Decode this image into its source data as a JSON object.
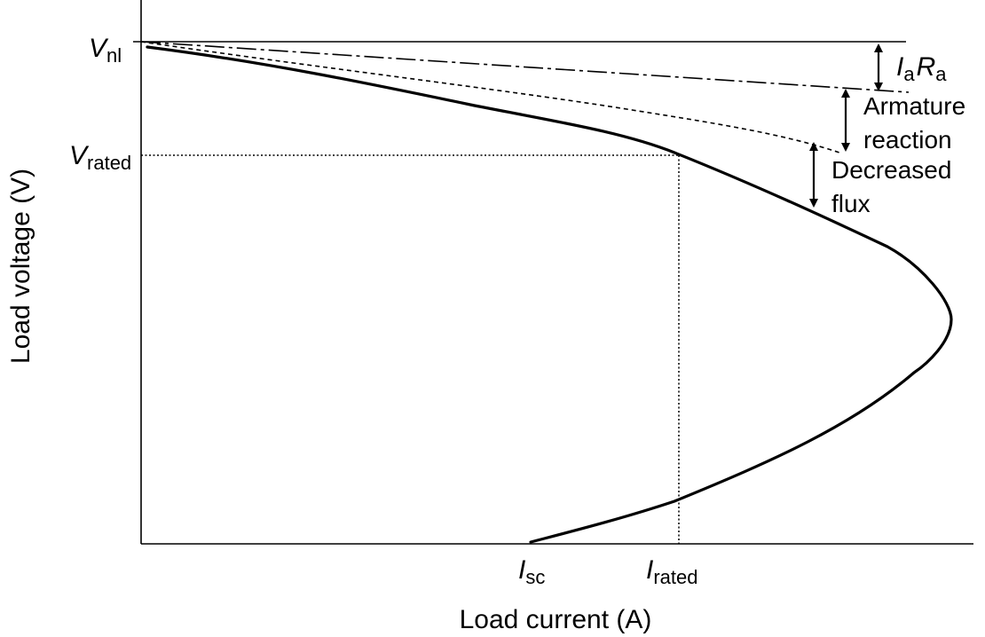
{
  "figure": {
    "axes": {
      "x_label": "Load current (A)",
      "y_label": "Load voltage (V)"
    },
    "y_ticks": [
      {
        "main": "V",
        "sub": "nl"
      },
      {
        "main": "V",
        "sub": "rated"
      }
    ],
    "x_ticks": [
      {
        "main": "I",
        "sub": "sc"
      },
      {
        "main": "I",
        "sub": "rated"
      }
    ],
    "annotations": {
      "iara": {
        "i": "I",
        "i_sub": "a",
        "r": "R",
        "r_sub": "a"
      },
      "armature_reaction": [
        "Armature",
        "reaction"
      ],
      "decreased_flux": [
        "Decreased",
        "flux"
      ]
    }
  }
}
